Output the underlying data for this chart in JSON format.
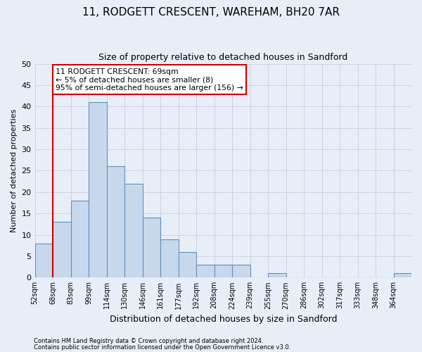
{
  "title": "11, RODGETT CRESCENT, WAREHAM, BH20 7AR",
  "subtitle": "Size of property relative to detached houses in Sandford",
  "xlabel": "Distribution of detached houses by size in Sandford",
  "ylabel": "Number of detached properties",
  "footnote1": "Contains HM Land Registry data © Crown copyright and database right 2024.",
  "footnote2": "Contains public sector information licensed under the Open Government Licence v3.0.",
  "bin_labels": [
    "52sqm",
    "68sqm",
    "83sqm",
    "99sqm",
    "114sqm",
    "130sqm",
    "146sqm",
    "161sqm",
    "177sqm",
    "192sqm",
    "208sqm",
    "224sqm",
    "239sqm",
    "255sqm",
    "270sqm",
    "286sqm",
    "302sqm",
    "317sqm",
    "333sqm",
    "348sqm",
    "364sqm"
  ],
  "bar_heights": [
    8,
    13,
    18,
    41,
    26,
    22,
    14,
    9,
    6,
    3,
    3,
    3,
    0,
    1,
    0,
    0,
    0,
    0,
    0,
    0,
    1
  ],
  "bar_color": "#c8d8ec",
  "bar_edge_color": "#6090bb",
  "grid_color": "#c8d0dc",
  "bg_color": "#e8eef8",
  "red_line_x": 1,
  "annotation_box_color": "#cc0000",
  "annotation_line1": "11 RODGETT CRESCENT: 69sqm",
  "annotation_line2": "← 5% of detached houses are smaller (8)",
  "annotation_line3": "95% of semi-detached houses are larger (156) →",
  "ylim": [
    0,
    50
  ],
  "yticks": [
    0,
    5,
    10,
    15,
    20,
    25,
    30,
    35,
    40,
    45,
    50
  ],
  "title_fontsize": 11,
  "subtitle_fontsize": 9,
  "ylabel_fontsize": 8,
  "xlabel_fontsize": 9,
  "footnote_fontsize": 6
}
